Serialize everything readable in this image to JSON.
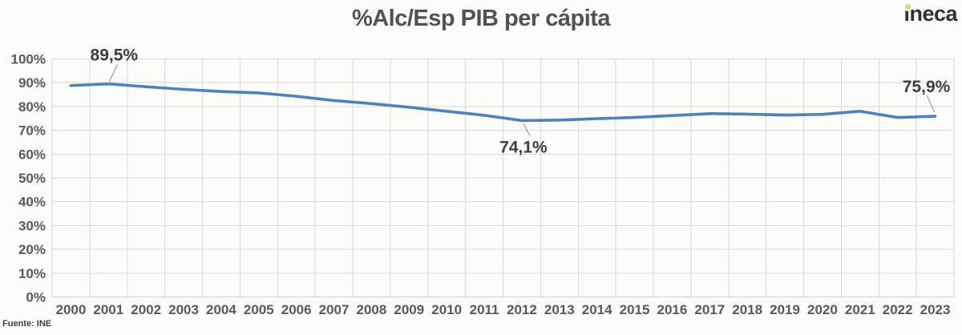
{
  "logo": {
    "text": "ineca"
  },
  "colors": {
    "background": "#fcfcf9",
    "line": "#4f81bd",
    "grid": "#d9d9d9",
    "axis": "#cfcfcf",
    "tick_text": "#595959",
    "annotation_text": "#3e3e3e",
    "leader": "#a0a0a0",
    "title_text": "#525252",
    "logo_text": "#31312e",
    "logo_dot": "#d9e36e"
  },
  "chart_data": {
    "type": "line",
    "title": "%Alc/Esp PIB per cápita",
    "source": "Fuente: INE",
    "categories": [
      "2000",
      "2001",
      "2002",
      "2003",
      "2004",
      "2005",
      "2006",
      "2007",
      "2008",
      "2009",
      "2010",
      "2011",
      "2012",
      "2013",
      "2014",
      "2015",
      "2016",
      "2017",
      "2018",
      "2019",
      "2020",
      "2021",
      "2022",
      "2023"
    ],
    "values": [
      88.8,
      89.5,
      88.3,
      87.2,
      86.3,
      85.7,
      84.3,
      82.5,
      81.2,
      79.7,
      78.0,
      76.3,
      74.1,
      74.3,
      74.9,
      75.4,
      76.2,
      77.0,
      76.8,
      76.4,
      76.7,
      78.0,
      75.4,
      75.9
    ],
    "ylim": [
      0,
      100
    ],
    "y_ticks": [
      "0%",
      "10%",
      "20%",
      "30%",
      "40%",
      "50%",
      "60%",
      "70%",
      "80%",
      "90%",
      "100%"
    ],
    "grid": true,
    "legend": "none",
    "annotations": [
      {
        "category": "2001",
        "value": 89.5,
        "label": "89,5%",
        "placement": "above"
      },
      {
        "category": "2012",
        "value": 74.1,
        "label": "74,1%",
        "placement": "below"
      },
      {
        "category": "2023",
        "value": 75.9,
        "label": "75,9%",
        "placement": "above-left"
      }
    ]
  }
}
